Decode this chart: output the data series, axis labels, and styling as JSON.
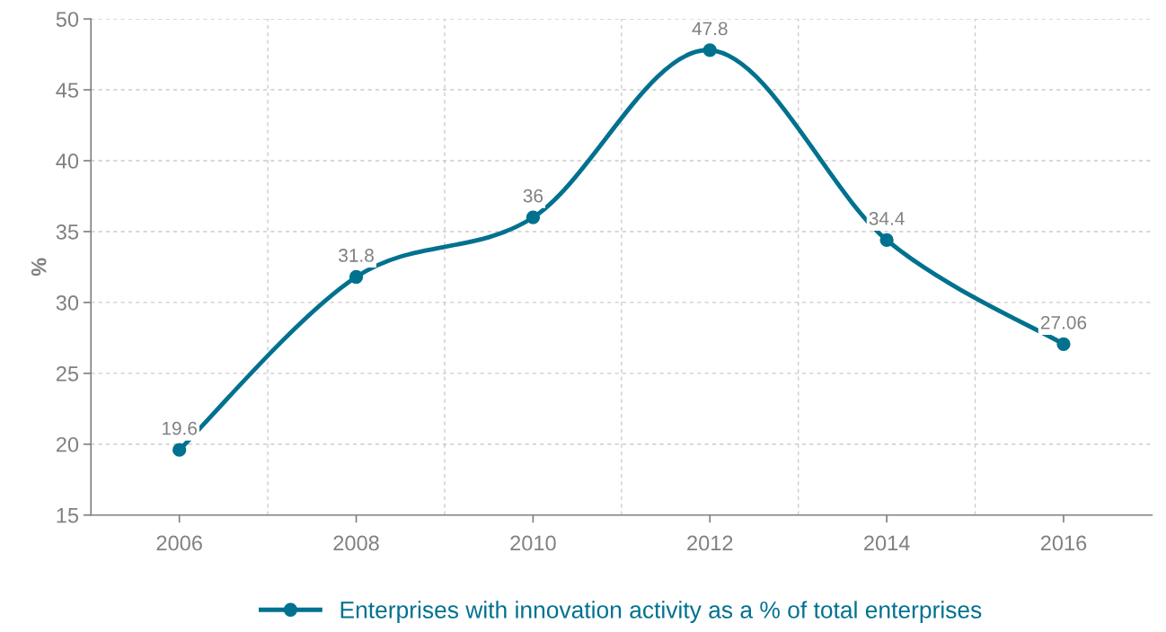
{
  "chart_data": {
    "type": "line",
    "ylabel": "%",
    "categories": [
      "2006",
      "2008",
      "2010",
      "2012",
      "2014",
      "2016"
    ],
    "series": [
      {
        "name": "Enterprises with innovation activity as a % of total enterprises",
        "color": "#00718f",
        "values": [
          19.6,
          31.8,
          36,
          47.8,
          34.4,
          27.06
        ]
      }
    ],
    "ylim": [
      15,
      50
    ],
    "yticks": [
      15,
      20,
      25,
      30,
      35,
      40,
      45,
      50
    ],
    "grid": true,
    "legend": "bottom",
    "marker": "circle",
    "line_style": "solid",
    "data_labels": true
  }
}
